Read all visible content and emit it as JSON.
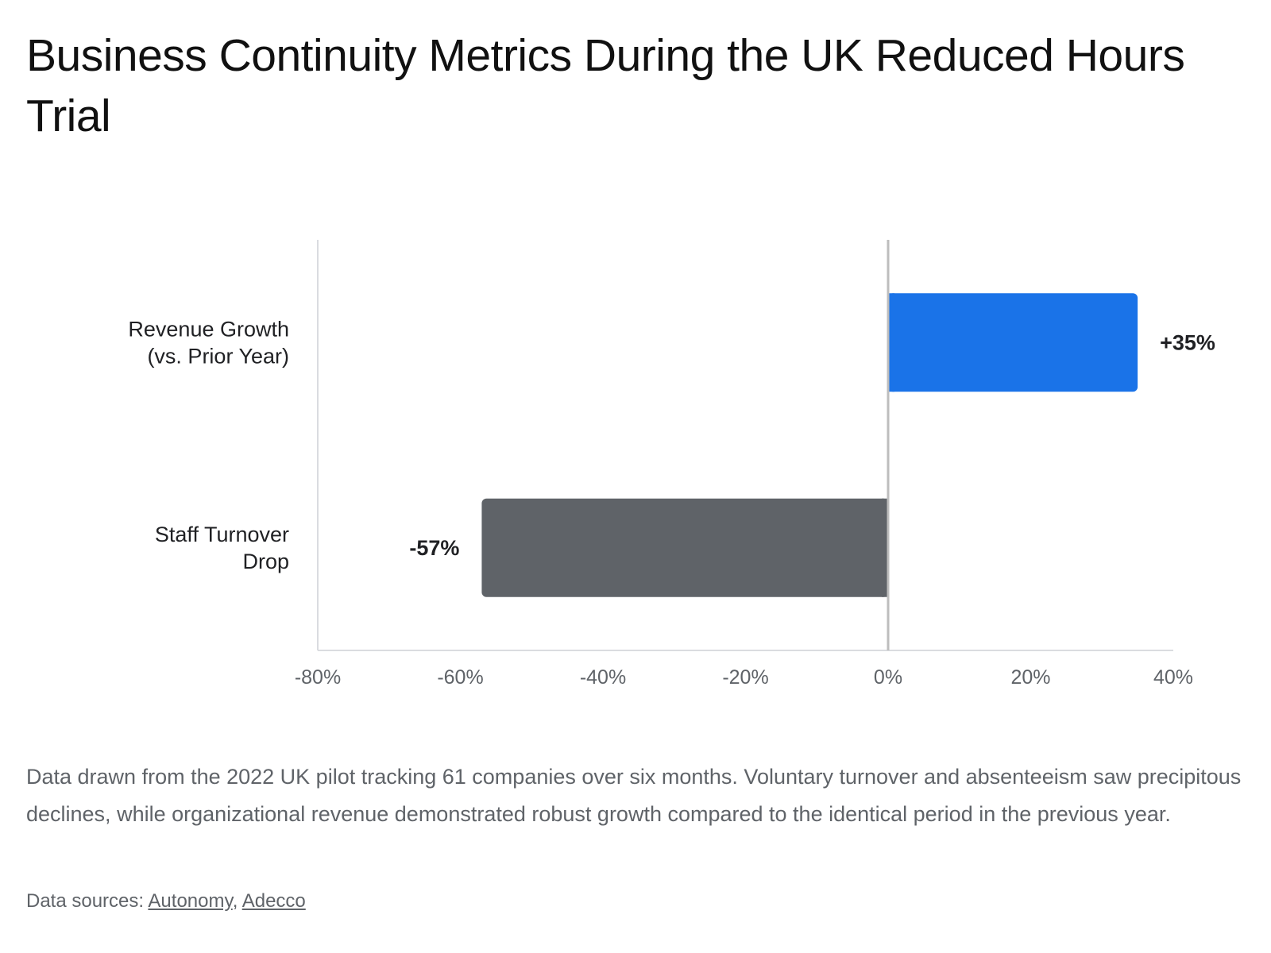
{
  "title": "Business Continuity Metrics During the UK Reduced Hours Trial",
  "description": "Data drawn from the 2022 UK pilot tracking 61 companies over six months. Voluntary turnover and absenteeism saw precipitous declines, while organizational revenue demonstrated robust growth compared to the identical period in the previous year.",
  "sources": {
    "prefix": "Data sources: ",
    "separator": ", ",
    "links": [
      "Autonomy",
      "Adecco"
    ]
  },
  "colors": {
    "positive_bar": "#1a73e8",
    "negative_bar": "#5f6368",
    "axis": "#dadce0",
    "zero_line": "#bdbdbd",
    "tick_text": "#5f6368",
    "category_text": "#202124",
    "value_label": "#202124"
  },
  "chart_data": {
    "type": "bar",
    "orientation": "horizontal",
    "title": "Business Continuity Metrics During the UK Reduced Hours Trial",
    "xlabel": "",
    "ylabel": "",
    "xlim": [
      -80,
      40
    ],
    "x_ticks": [
      -80,
      -60,
      -40,
      -20,
      0,
      20,
      40
    ],
    "tick_labels": [
      "-80%",
      "-60%",
      "-40%",
      "-20%",
      "0%",
      "20%",
      "40%"
    ],
    "categories": [
      [
        "Revenue Growth",
        "(vs. Prior Year)"
      ],
      [
        "Staff Turnover",
        "Drop"
      ]
    ],
    "values": [
      35,
      -57
    ],
    "data_labels": [
      "+35%",
      "-57%"
    ],
    "grid": false,
    "legend": "none"
  }
}
